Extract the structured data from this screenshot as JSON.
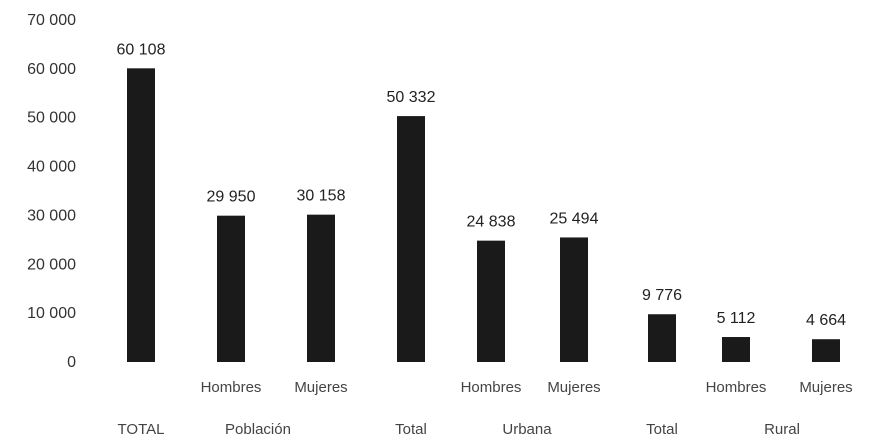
{
  "chart_data": {
    "type": "bar",
    "title": "",
    "xlabel": "",
    "ylabel": "",
    "ylim": [
      0,
      70000
    ],
    "yticks": [
      "0",
      "10 000",
      "20 000",
      "30 000",
      "40 000",
      "50 000",
      "60 000",
      "70 000"
    ],
    "grid": false,
    "bar_color": "#1a1a1a",
    "categories": [
      "",
      "Hombres",
      "Mujeres",
      "",
      "Hombres",
      "Mujeres",
      "",
      "Hombres",
      "Mujeres"
    ],
    "values": [
      60108,
      29950,
      30158,
      50332,
      24838,
      25494,
      9776,
      5112,
      4664
    ],
    "value_labels": [
      "60 108",
      "29 950",
      "30 158",
      "50 332",
      "24 838",
      "25 494",
      "9 776",
      "5 112",
      "4 664"
    ],
    "group_labels": [
      "TOTAL",
      "Población",
      "Total",
      "Urbana",
      "Total",
      "Rural"
    ]
  }
}
